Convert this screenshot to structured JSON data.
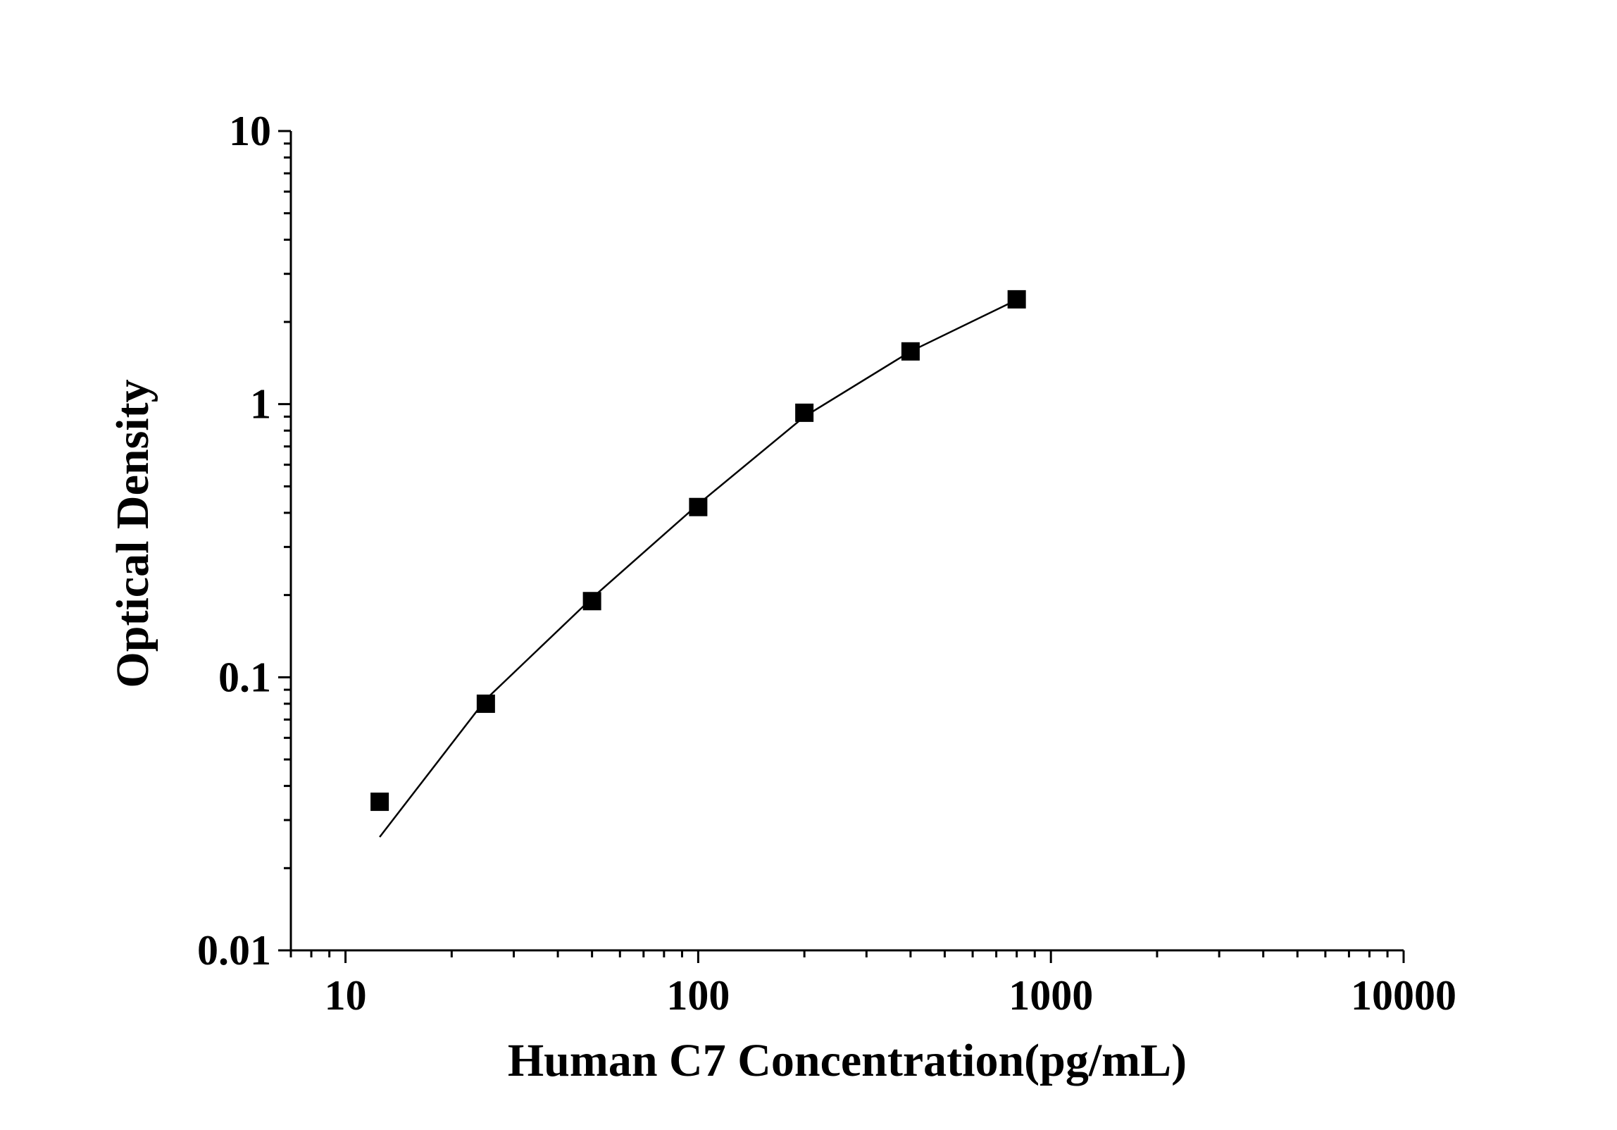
{
  "chart_data": {
    "type": "scatter",
    "title": "",
    "xlabel": "Human C7 Concentration(pg/mL)",
    "ylabel": "Optical Density",
    "x_scale": "log",
    "y_scale": "log",
    "xlim": [
      7,
      10000
    ],
    "ylim": [
      0.01,
      10
    ],
    "x_ticks": [
      {
        "value": 10,
        "label": "10"
      },
      {
        "value": 100,
        "label": "100"
      },
      {
        "value": 1000,
        "label": "1000"
      },
      {
        "value": 10000,
        "label": "10000"
      }
    ],
    "y_ticks": [
      {
        "value": 0.01,
        "label": "0.01"
      },
      {
        "value": 0.1,
        "label": "0.1"
      },
      {
        "value": 1,
        "label": "1"
      },
      {
        "value": 10,
        "label": "10"
      }
    ],
    "grid": false,
    "legend": "none",
    "marker": "square",
    "series": [
      {
        "x": [
          12.5,
          25,
          50,
          100,
          200,
          400,
          800
        ],
        "y": [
          0.035,
          0.08,
          0.19,
          0.42,
          0.93,
          1.56,
          2.42
        ]
      }
    ],
    "fit_curve": {
      "x": [
        12.5,
        25,
        50,
        100,
        200,
        400,
        800
      ],
      "y": [
        0.026,
        0.083,
        0.195,
        0.43,
        0.9,
        1.56,
        2.41
      ]
    },
    "colors": {
      "marker": "#000000",
      "line": "#000000"
    }
  }
}
